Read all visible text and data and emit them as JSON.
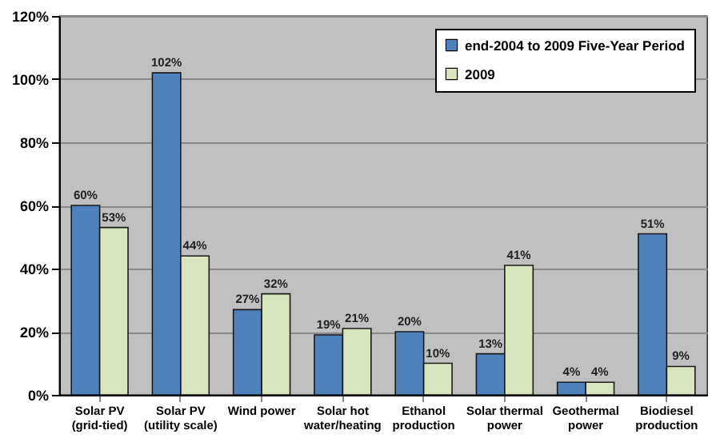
{
  "chart_data": {
    "type": "bar",
    "categories": [
      "Solar PV (grid-tied)",
      "Solar PV (utility scale)",
      "Wind power",
      "Solar hot water/heating",
      "Ethanol production",
      "Solar thermal power",
      "Geothermal power",
      "Biodiesel production"
    ],
    "series": [
      {
        "name": "end-2004 to 2009 Five-Year Period",
        "color": "#4f81bd",
        "values": [
          60,
          102,
          27,
          19,
          20,
          13,
          4,
          51
        ],
        "value_labels": [
          "60%",
          "102%",
          "27%",
          "19%",
          "20%",
          "13%",
          "4%",
          "51%"
        ]
      },
      {
        "name": "2009",
        "color": "#d7e4bd",
        "values": [
          53,
          44,
          32,
          21,
          10,
          41,
          4,
          9
        ],
        "value_labels": [
          "53%",
          "44%",
          "32%",
          "21%",
          "10%",
          "41%",
          "4%",
          "9%"
        ]
      }
    ],
    "ylim": [
      0,
      120
    ],
    "yticks": [
      {
        "value": 0,
        "label": "0%"
      },
      {
        "value": 20,
        "label": "20%"
      },
      {
        "value": 40,
        "label": "40%"
      },
      {
        "value": 60,
        "label": "60%"
      },
      {
        "value": 80,
        "label": "80%"
      },
      {
        "value": 100,
        "label": "100%"
      },
      {
        "value": 120,
        "label": "120%"
      }
    ],
    "grid": "y",
    "legend": "top right"
  }
}
